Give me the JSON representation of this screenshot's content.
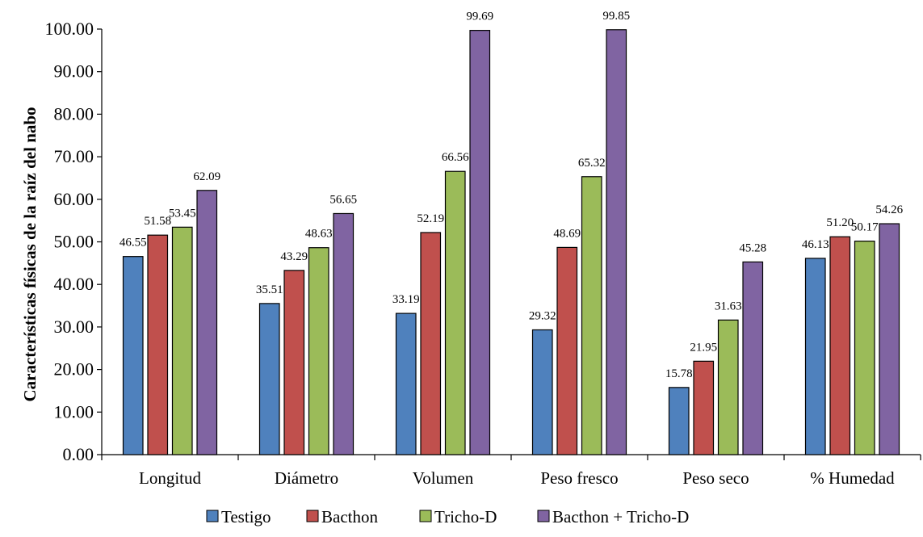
{
  "chart_data": {
    "type": "bar",
    "title": "",
    "xlabel": "",
    "ylabel": "Características físicas de la raíz del nabo",
    "ylim": [
      0,
      100
    ],
    "y_ticks": [
      "0.00",
      "10.00",
      "20.00",
      "30.00",
      "40.00",
      "50.00",
      "60.00",
      "70.00",
      "80.00",
      "90.00",
      "100.00"
    ],
    "categories": [
      "Longitud",
      "Diámetro",
      "Volumen",
      "Peso fresco",
      "Peso seco",
      "% Humedad"
    ],
    "series": [
      {
        "name": "Testigo",
        "color": "#4F81BD",
        "values": [
          46.55,
          35.51,
          33.19,
          29.32,
          15.78,
          46.13
        ],
        "labels": [
          "46.55",
          "35.51",
          "33.19",
          "29.32",
          "15.78",
          "46.13"
        ]
      },
      {
        "name": "Bacthon",
        "color": "#C0504D",
        "values": [
          51.58,
          43.29,
          52.19,
          48.69,
          21.95,
          51.2
        ],
        "labels": [
          "51.58",
          "43.29",
          "52.19",
          "48.69",
          "21.95",
          "51.20"
        ]
      },
      {
        "name": "Tricho-D",
        "color": "#9BBB59",
        "values": [
          53.45,
          48.63,
          66.56,
          65.32,
          31.63,
          50.17
        ],
        "labels": [
          "53.45",
          "48.63",
          "66.56",
          "65.32",
          "31.63",
          "50.17"
        ]
      },
      {
        "name": "Bacthon + Tricho-D",
        "color": "#8064A2",
        "values": [
          62.09,
          56.65,
          99.69,
          99.85,
          45.28,
          54.26
        ],
        "labels": [
          "62.09",
          "56.65",
          "99.69",
          "99.85",
          "45.28",
          "54.26"
        ]
      }
    ],
    "grid": false,
    "legend_position": "bottom"
  }
}
